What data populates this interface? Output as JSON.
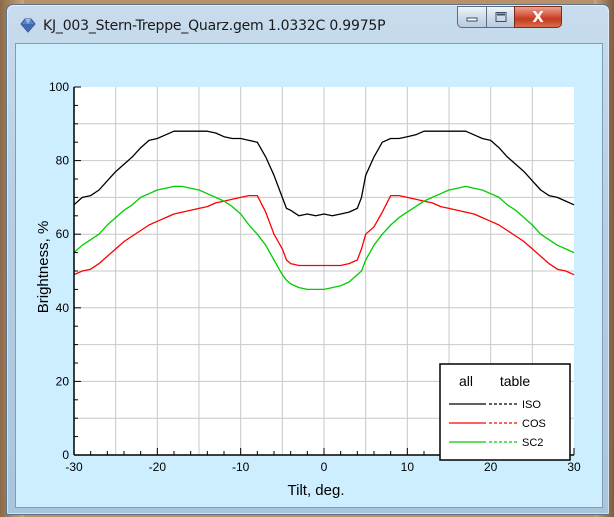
{
  "window": {
    "title": "KJ_003_Stern-Treppe_Quarz.gem 1.0332C 0.9975P",
    "icon": "app-gem-icon",
    "controls": {
      "minimize": "minimize-icon",
      "maximize": "maximize-icon",
      "close": "X"
    }
  },
  "colors": {
    "plot_bg": "#ffffff",
    "client_bg": "#cceeff",
    "grid": "#c8c8c8",
    "iso": "#000000",
    "cos": "#ff0000",
    "sc2": "#00cc00"
  },
  "chart_data": {
    "type": "line",
    "title": "",
    "xlabel": "Tilt, deg.",
    "ylabel": "Brightness, %",
    "xlim": [
      -30,
      30
    ],
    "ylim": [
      0,
      100
    ],
    "xticks": [
      "-30",
      "-20",
      "-10",
      "0",
      "10",
      "20",
      "30"
    ],
    "yticks": [
      "0",
      "20",
      "40",
      "60",
      "80",
      "100"
    ],
    "grid": true,
    "legend": {
      "placement": "bottom-right",
      "header_all": "all",
      "header_table": "table",
      "entries": [
        "ISO",
        "COS",
        "SC2"
      ]
    },
    "series": [
      {
        "name": "ISO",
        "color": "#000000",
        "x": [
          -30,
          -29,
          -28,
          -27,
          -26,
          -25,
          -24,
          -23,
          -22,
          -21,
          -20,
          -19,
          -18,
          -17,
          -16,
          -15,
          -14,
          -13,
          -12,
          -11,
          -10,
          -9,
          -8,
          -7,
          -6,
          -5,
          -4.5,
          -4,
          -3,
          -2,
          -1,
          0,
          1,
          2,
          3,
          4,
          4.5,
          5,
          6,
          7,
          8,
          9,
          10,
          11,
          12,
          13,
          14,
          15,
          16,
          17,
          18,
          19,
          20,
          21,
          22,
          23,
          24,
          25,
          26,
          27,
          28,
          29,
          30
        ],
        "y": [
          68,
          70,
          70.5,
          72,
          74.5,
          77,
          79,
          81,
          83.5,
          85.5,
          86,
          87,
          88,
          88,
          88,
          88,
          88,
          87.5,
          86.5,
          86,
          86,
          85.5,
          85,
          81,
          76,
          70,
          67,
          66.5,
          65,
          65.5,
          65,
          65.5,
          65,
          65.5,
          66,
          67,
          70,
          76,
          81,
          85,
          86,
          86,
          86.5,
          87,
          88,
          88,
          88,
          88,
          88,
          88,
          87,
          86,
          85.5,
          83.5,
          81,
          79,
          77,
          74.5,
          72,
          70.5,
          70,
          69,
          68
        ]
      },
      {
        "name": "COS",
        "color": "#ff0000",
        "x": [
          -30,
          -29,
          -28,
          -27,
          -26,
          -25,
          -24,
          -23,
          -22,
          -21,
          -20,
          -19,
          -18,
          -17,
          -16,
          -15,
          -14,
          -13,
          -12,
          -11,
          -10,
          -9,
          -8,
          -7,
          -6,
          -5,
          -4.5,
          -4,
          -3,
          -2,
          -1,
          0,
          1,
          2,
          3,
          4,
          4.5,
          5,
          6,
          7,
          8,
          9,
          10,
          11,
          12,
          13,
          14,
          15,
          16,
          17,
          18,
          19,
          20,
          21,
          22,
          23,
          24,
          25,
          26,
          27,
          28,
          29,
          30
        ],
        "y": [
          49,
          50,
          50.5,
          52,
          54,
          56,
          58,
          59.5,
          61,
          62.5,
          63.5,
          64.5,
          65.5,
          66,
          66.5,
          67,
          67.5,
          68.5,
          69,
          69.5,
          70,
          70.5,
          70.5,
          66,
          60,
          56,
          53,
          52,
          51.5,
          51.5,
          51.5,
          51.5,
          51.5,
          51.5,
          52,
          53,
          56,
          60,
          62,
          66,
          70.5,
          70.5,
          70,
          69.5,
          69,
          68.5,
          67.5,
          67,
          66.5,
          66,
          65.5,
          64.5,
          63.5,
          62.5,
          61,
          59.5,
          58,
          56,
          54,
          52,
          50.5,
          50,
          49
        ]
      },
      {
        "name": "SC2",
        "color": "#00cc00",
        "x": [
          -30,
          -29,
          -28,
          -27,
          -26,
          -25,
          -24,
          -23,
          -22,
          -21,
          -20,
          -19,
          -18,
          -17,
          -16,
          -15,
          -14,
          -13,
          -12,
          -11,
          -10,
          -9,
          -8,
          -7,
          -6,
          -5,
          -4.5,
          -4,
          -3,
          -2,
          -1,
          0,
          1,
          2,
          3,
          4,
          4.5,
          5,
          6,
          7,
          8,
          9,
          10,
          11,
          12,
          13,
          14,
          15,
          16,
          17,
          18,
          19,
          20,
          21,
          22,
          23,
          24,
          25,
          26,
          27,
          28,
          29,
          30
        ],
        "y": [
          55,
          57,
          58.5,
          60,
          62.5,
          64.5,
          66.5,
          68,
          70,
          71,
          72,
          72.5,
          73,
          73,
          72.5,
          72,
          71,
          70,
          69,
          67.5,
          65.5,
          62.5,
          60,
          57,
          53,
          49,
          47.5,
          46.5,
          45.5,
          45,
          45,
          45,
          45.5,
          46,
          47,
          49,
          50,
          53,
          57,
          60,
          62.5,
          64.5,
          66,
          67.5,
          69,
          70,
          71,
          72,
          72.5,
          73,
          72.5,
          72,
          71,
          70,
          68,
          66.5,
          64.5,
          62.5,
          60,
          58.5,
          57,
          56,
          55
        ]
      }
    ]
  }
}
